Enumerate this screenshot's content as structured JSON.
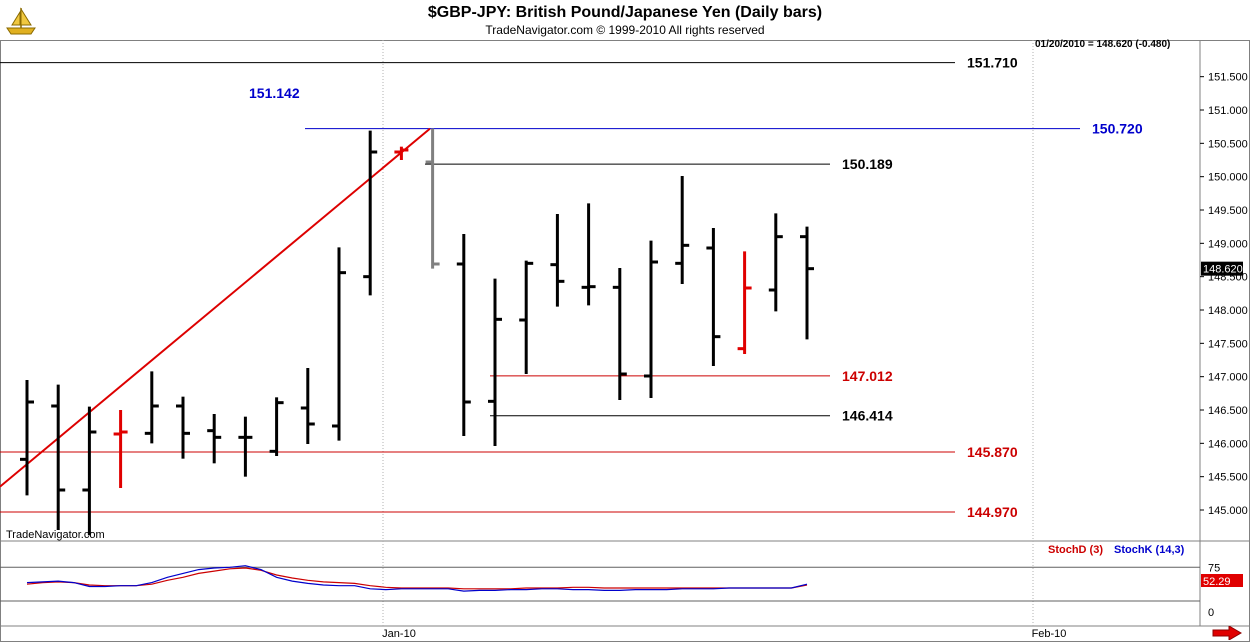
{
  "window": {
    "title": "$GBP-JPY:  British Pound/Japanese Yen  (Daily bars)",
    "subtitle": "TradeNavigator.com © 1999-2010 All rights reserved",
    "watermark": "TradeNavigator.com",
    "last_info": "01/20/2010 = 148.620 (-0.480)",
    "logo_icon": "ship-icon",
    "nav_icon": "right-arrow-icon"
  },
  "chart_data": [
    {
      "type": "ohlc",
      "title": "$GBP-JPY:  British Pound/Japanese Yen  (Daily bars)",
      "y_ticks": [
        "151.500",
        "151.000",
        "150.500",
        "150.000",
        "149.500",
        "149.000",
        "148.500",
        "148.000",
        "147.500",
        "147.000",
        "146.500",
        "146.000",
        "145.500",
        "145.000"
      ],
      "ylim": [
        144.55,
        152.05
      ],
      "x_labels": [
        "Jan-10",
        "Feb-10"
      ],
      "last_price_label": "148.620",
      "bars": [
        {
          "o": 145.76,
          "h": 146.95,
          "l": 145.22,
          "c": 146.62,
          "color": "black"
        },
        {
          "o": 146.56,
          "h": 146.88,
          "l": 144.7,
          "c": 145.3,
          "color": "black"
        },
        {
          "o": 145.3,
          "h": 146.55,
          "l": 144.62,
          "c": 146.17,
          "color": "black"
        },
        {
          "o": 146.14,
          "h": 146.5,
          "l": 145.33,
          "c": 146.17,
          "color": "red"
        },
        {
          "o": 146.15,
          "h": 147.08,
          "l": 146.0,
          "c": 146.56,
          "color": "black"
        },
        {
          "o": 146.56,
          "h": 146.7,
          "l": 145.77,
          "c": 146.15,
          "color": "black"
        },
        {
          "o": 146.19,
          "h": 146.44,
          "l": 145.7,
          "c": 146.09,
          "color": "black"
        },
        {
          "o": 146.09,
          "h": 146.4,
          "l": 145.5,
          "c": 146.09,
          "color": "black"
        },
        {
          "o": 145.88,
          "h": 146.69,
          "l": 145.81,
          "c": 146.61,
          "color": "black"
        },
        {
          "o": 146.53,
          "h": 147.13,
          "l": 145.99,
          "c": 146.29,
          "color": "black"
        },
        {
          "o": 146.26,
          "h": 148.94,
          "l": 146.04,
          "c": 148.56,
          "color": "black"
        },
        {
          "o": 148.5,
          "h": 150.69,
          "l": 148.22,
          "c": 150.37,
          "color": "black"
        },
        {
          "o": 150.37,
          "h": 150.45,
          "l": 150.25,
          "c": 150.4,
          "color": "red"
        },
        {
          "o": 150.22,
          "h": 150.72,
          "l": 148.62,
          "c": 148.69,
          "color": "gray"
        },
        {
          "o": 148.69,
          "h": 149.14,
          "l": 146.11,
          "c": 146.62,
          "color": "black"
        },
        {
          "o": 146.63,
          "h": 148.47,
          "l": 145.96,
          "c": 147.86,
          "color": "black"
        },
        {
          "o": 147.85,
          "h": 148.74,
          "l": 147.04,
          "c": 148.7,
          "color": "black"
        },
        {
          "o": 148.68,
          "h": 149.44,
          "l": 148.05,
          "c": 148.43,
          "color": "black"
        },
        {
          "o": 148.34,
          "h": 149.6,
          "l": 148.07,
          "c": 148.35,
          "color": "black"
        },
        {
          "o": 148.34,
          "h": 148.63,
          "l": 146.65,
          "c": 147.04,
          "color": "black"
        },
        {
          "o": 147.01,
          "h": 149.04,
          "l": 146.68,
          "c": 148.72,
          "color": "black"
        },
        {
          "o": 148.7,
          "h": 150.01,
          "l": 148.39,
          "c": 148.97,
          "color": "black"
        },
        {
          "o": 148.93,
          "h": 149.23,
          "l": 147.16,
          "c": 147.6,
          "color": "black"
        },
        {
          "o": 147.42,
          "h": 148.88,
          "l": 147.34,
          "c": 148.33,
          "color": "red"
        },
        {
          "o": 148.3,
          "h": 149.45,
          "l": 147.98,
          "c": 149.1,
          "color": "black"
        },
        {
          "o": 149.1,
          "h": 149.25,
          "l": 147.56,
          "c": 148.62,
          "color": "black"
        }
      ],
      "levels": [
        {
          "price": 151.71,
          "label": "151.710",
          "color": "#000000"
        },
        {
          "price": 150.72,
          "label": "150.720",
          "color": "#0000cc"
        },
        {
          "price": 150.189,
          "label": "150.189",
          "color": "#000000"
        },
        {
          "price": 147.012,
          "label": "147.012",
          "color": "#cc0000"
        },
        {
          "price": 146.414,
          "label": "146.414",
          "color": "#000000"
        },
        {
          "price": 145.87,
          "label": "145.870",
          "color": "#cc0000"
        },
        {
          "price": 144.97,
          "label": "144.970",
          "color": "#cc0000"
        }
      ],
      "annotation": {
        "label": "151.142",
        "color": "#0000cc"
      },
      "trendline": {
        "from": 145.35,
        "to": 150.72,
        "color": "#dd0000"
      }
    },
    {
      "type": "line",
      "title": "Stochastics",
      "legend": [
        {
          "name": "StochD (3)",
          "color": "#cc0000"
        },
        {
          "name": "StochK (14,3)",
          "color": "#0000cc"
        }
      ],
      "y_ticks": [
        "75",
        "0"
      ],
      "ylim": [
        0,
        100
      ],
      "current_value": "52.29",
      "series": [
        {
          "name": "StochD (3)",
          "color": "#cc0000",
          "values": [
            53,
            55,
            56,
            55,
            52,
            51,
            51,
            51,
            53,
            58,
            62,
            67,
            70,
            73,
            74,
            71,
            65,
            61,
            58,
            56,
            55,
            54,
            51,
            49,
            48,
            48,
            48,
            48,
            47,
            47,
            47,
            47,
            48,
            48,
            48,
            49,
            49,
            48,
            48,
            48,
            48,
            48,
            48,
            48,
            48,
            48,
            48,
            48,
            48,
            48,
            52
          ]
        },
        {
          "name": "StochK (14,3)",
          "color": "#0000cc",
          "values": [
            55,
            56,
            57,
            55,
            50,
            50,
            51,
            51,
            55,
            62,
            67,
            72,
            74,
            75,
            77,
            72,
            62,
            57,
            54,
            52,
            51,
            51,
            47,
            46,
            47,
            47,
            47,
            47,
            44,
            45,
            45,
            46,
            46,
            47,
            47,
            46,
            46,
            45,
            45,
            46,
            46,
            46,
            47,
            47,
            47,
            48,
            48,
            48,
            48,
            48,
            53
          ]
        }
      ]
    }
  ]
}
